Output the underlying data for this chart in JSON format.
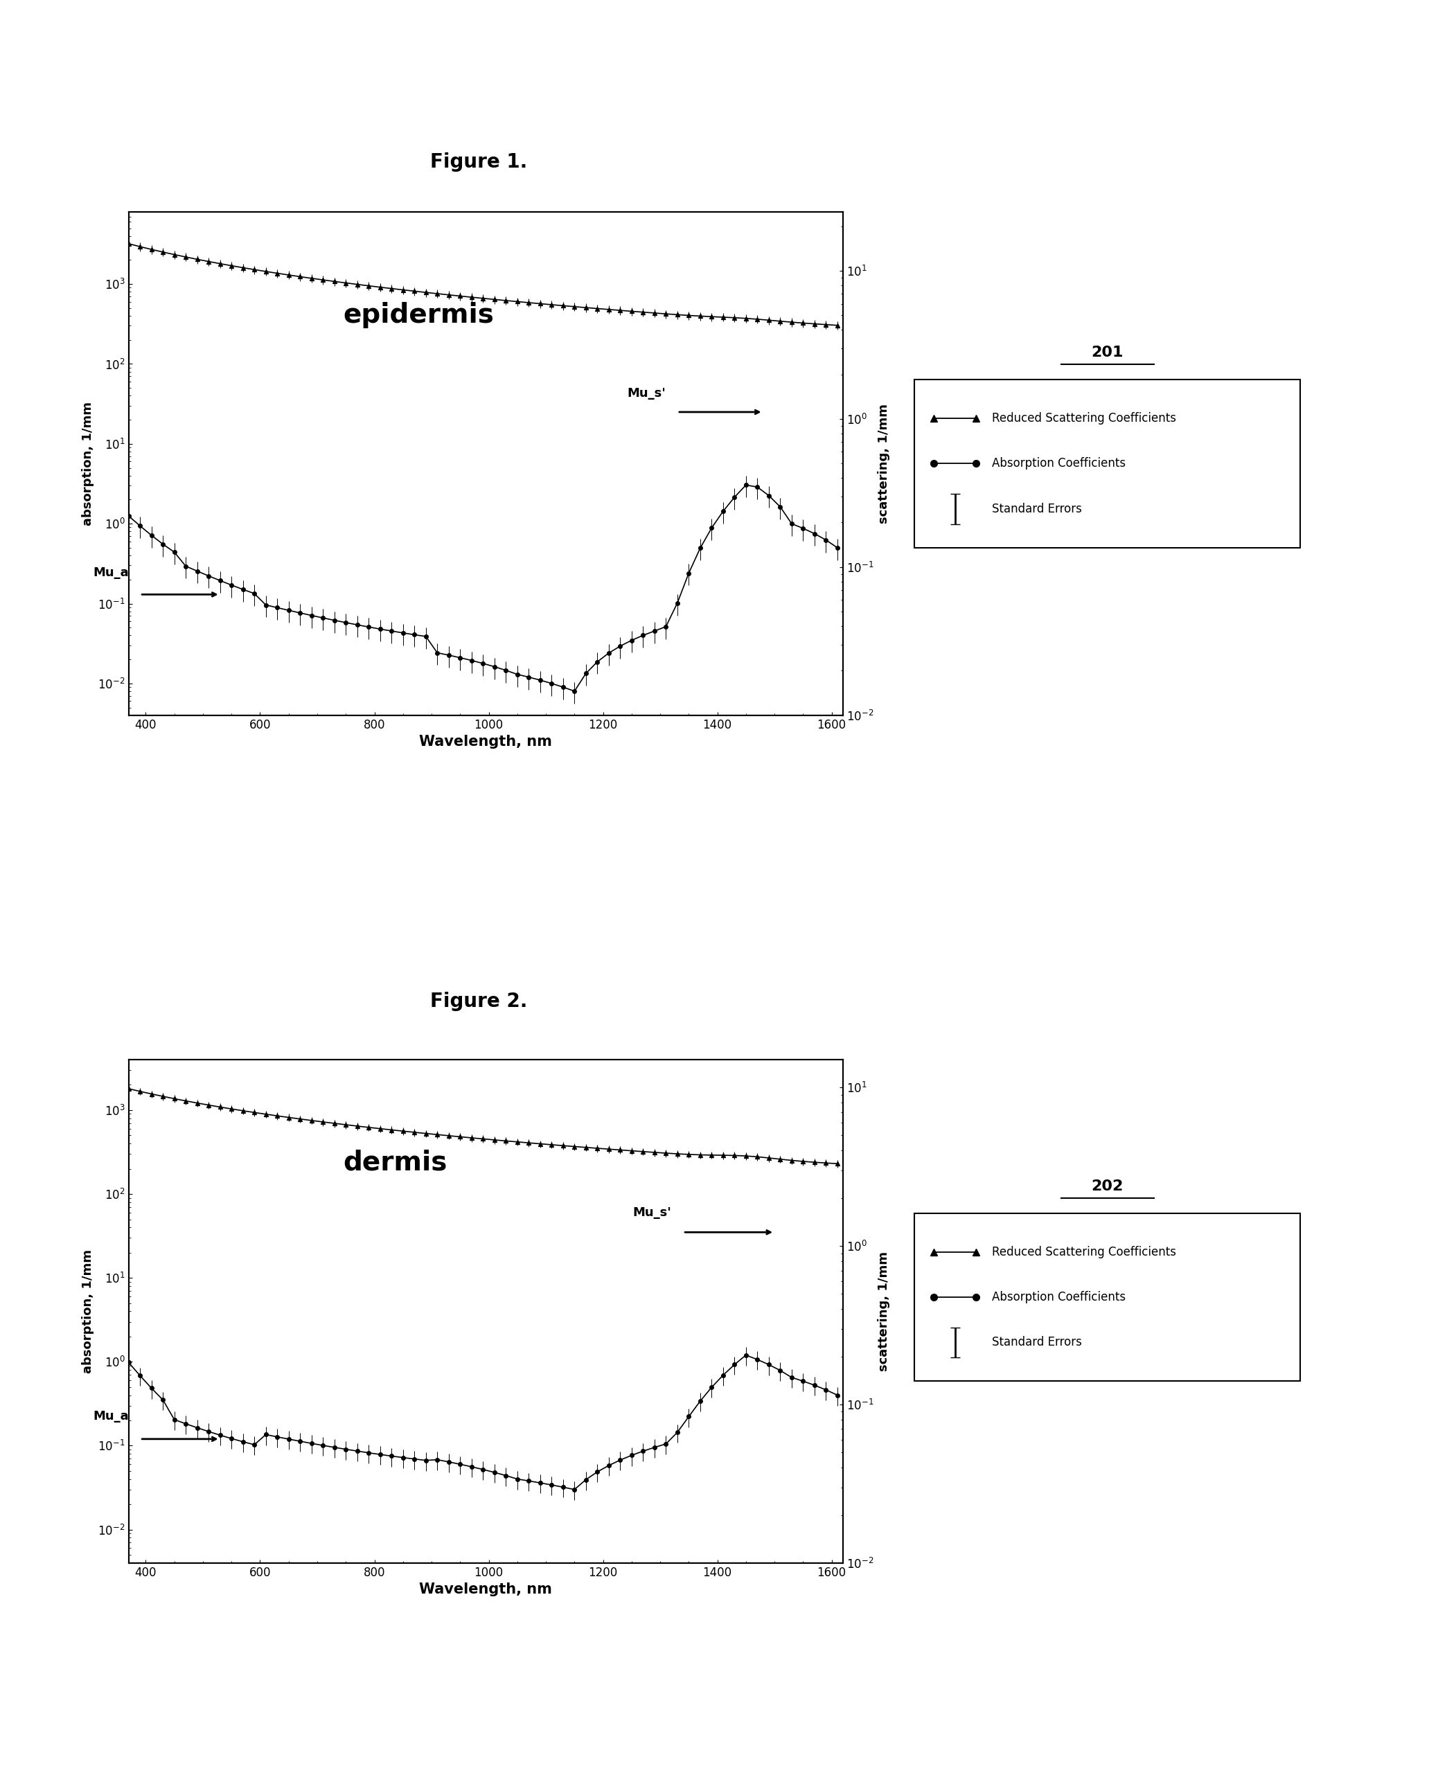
{
  "fig_title1": "Figure 1.",
  "fig_title2": "Figure 2.",
  "label1": "epidermis",
  "label2": "dermis",
  "ref1": "201",
  "ref2": "202",
  "xlabel": "Wavelength, nm",
  "ylabel_left": "absorption, 1/mm",
  "ylabel_right": "scattering, 1/mm",
  "xmin": 370,
  "xmax": 1620,
  "legend_entries": [
    "Reduced Scattering Coefficients",
    "Absorption Coefficients",
    "Standard Errors"
  ],
  "background": "#ffffff",
  "line_color": "#000000",
  "wavelengths": [
    370,
    390,
    410,
    430,
    450,
    470,
    490,
    510,
    530,
    550,
    570,
    590,
    610,
    630,
    650,
    670,
    690,
    710,
    730,
    750,
    770,
    790,
    810,
    830,
    850,
    870,
    890,
    910,
    930,
    950,
    970,
    990,
    1010,
    1030,
    1050,
    1070,
    1090,
    1110,
    1130,
    1150,
    1170,
    1190,
    1210,
    1230,
    1250,
    1270,
    1290,
    1310,
    1330,
    1350,
    1370,
    1390,
    1410,
    1430,
    1450,
    1470,
    1490,
    1510,
    1530,
    1550,
    1570,
    1590,
    1610
  ]
}
